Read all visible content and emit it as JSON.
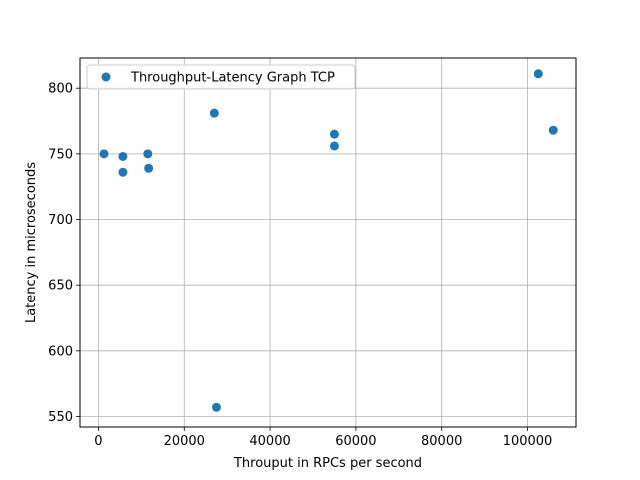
{
  "chart_data": {
    "type": "scatter",
    "title": "",
    "xlabel": "Throuput in RPCs per second",
    "ylabel": "Latency in microseconds",
    "xlim": [
      -4300,
      111300
    ],
    "ylim": [
      542,
      823
    ],
    "xticks": [
      0,
      20000,
      40000,
      60000,
      80000,
      100000
    ],
    "yticks": [
      550,
      600,
      650,
      700,
      750,
      800
    ],
    "grid": true,
    "legend_position": "top-left",
    "series": [
      {
        "name": "Throughput-Latency Graph TCP",
        "color": "#1f77b4",
        "points": [
          {
            "x": 1300,
            "y": 750
          },
          {
            "x": 5700,
            "y": 748
          },
          {
            "x": 5700,
            "y": 736
          },
          {
            "x": 11500,
            "y": 750
          },
          {
            "x": 11700,
            "y": 739
          },
          {
            "x": 27000,
            "y": 781
          },
          {
            "x": 27500,
            "y": 557
          },
          {
            "x": 55000,
            "y": 765
          },
          {
            "x": 55000,
            "y": 756
          },
          {
            "x": 102500,
            "y": 811
          },
          {
            "x": 106000,
            "y": 768
          }
        ]
      }
    ]
  }
}
